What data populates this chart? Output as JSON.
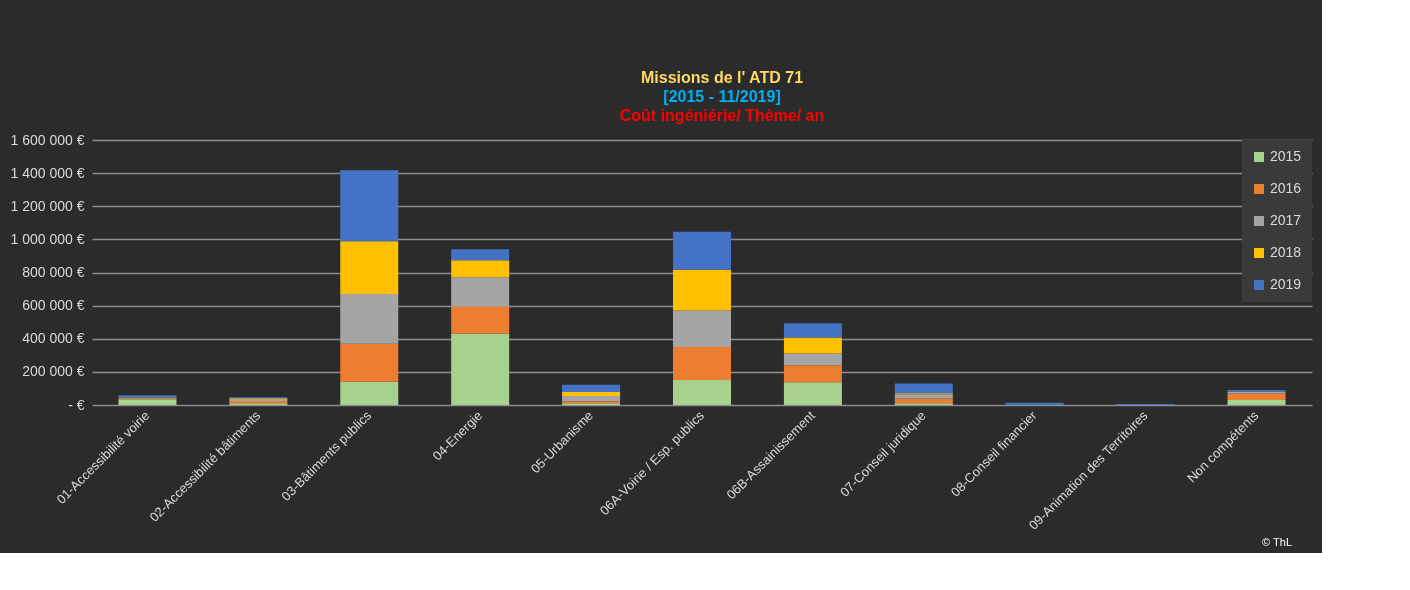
{
  "chart_data": {
    "type": "bar",
    "title": "Missions de l' ATD 71",
    "subtitle": [
      "[2015 - 11/2019]",
      "Coût ingéniérie/ Thème/ an"
    ],
    "categories": [
      "01-Accessibilité voirie",
      "02-Accessibilité bâtiments",
      "03-Bâtiments publics",
      "04-Energie",
      "05-Urbanisme",
      "06A-Voirie / Esp. publics",
      "06B-Assainissement",
      "07-Conseil juridique",
      "08-Conseil financier",
      "09-Animation des Territoires",
      "Non compétents"
    ],
    "stacked": true,
    "series": [
      {
        "name": "2015",
        "color": "#a9d18e",
        "values": [
          35000,
          10000,
          140000,
          432000,
          10000,
          151000,
          138000,
          10000,
          0,
          0,
          30000
        ]
      },
      {
        "name": "2016",
        "color": "#ed7d31",
        "values": [
          3000,
          14000,
          230000,
          163000,
          12000,
          199000,
          102000,
          29000,
          0,
          0,
          40000
        ]
      },
      {
        "name": "2017",
        "color": "#a5a5a5",
        "values": [
          3000,
          16000,
          300000,
          177000,
          33000,
          220000,
          71000,
          26000,
          0,
          0,
          12000
        ]
      },
      {
        "name": "2018",
        "color": "#ffc000",
        "values": [
          5000,
          3000,
          318000,
          102000,
          24000,
          246000,
          96000,
          6000,
          0,
          0,
          null
        ]
      },
      {
        "name": "2019",
        "color": "#4472c4",
        "values": [
          13000,
          4000,
          429000,
          67000,
          43000,
          230000,
          87000,
          59000,
          14000,
          6000,
          8000
        ]
      }
    ],
    "ylim": [
      0,
      1600000
    ],
    "yticks": [
      {
        "value": 0,
        "label": "- €"
      },
      {
        "value": 200000,
        "label": "200 000 €"
      },
      {
        "value": 400000,
        "label": "400 000 €"
      },
      {
        "value": 600000,
        "label": "600 000 €"
      },
      {
        "value": 800000,
        "label": "800 000 €"
      },
      {
        "value": 1000000,
        "label": "1 000 000 €"
      },
      {
        "value": 1200000,
        "label": "1 200 000 €"
      },
      {
        "value": 1400000,
        "label": "1 400 000 €"
      },
      {
        "value": 1600000,
        "label": "1 600 000 €"
      }
    ],
    "grid": "y",
    "legend": "top right",
    "annotations": [
      "© ThL"
    ]
  }
}
